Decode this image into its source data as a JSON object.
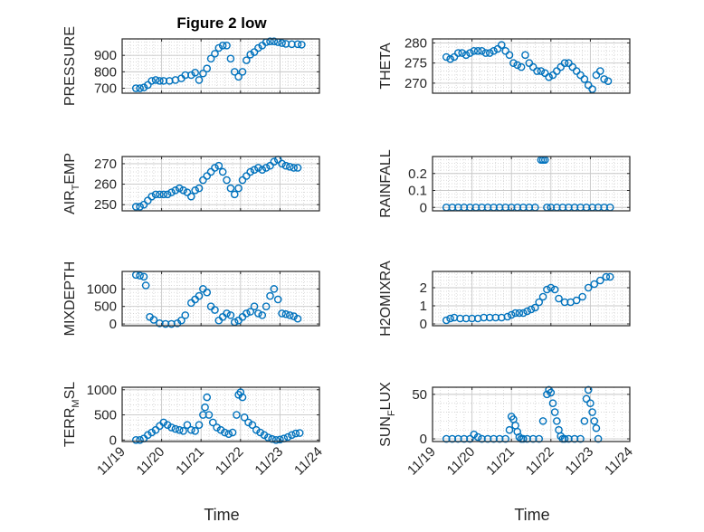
{
  "figure_title": "Figure 2 low",
  "xlabel": "Time",
  "colors": {
    "marker": "#0072BD",
    "axis": "#262626",
    "grid": "#d0d0d0",
    "background": "#ffffff"
  },
  "x_ticks": [
    "11/19",
    "11/20",
    "11/21",
    "11/22",
    "11/23",
    "11/24"
  ],
  "chart_data": [
    {
      "type": "scatter",
      "ylabel": "PRESSURE",
      "xlim": [
        "11/19",
        "11/24"
      ],
      "ylim": [
        670,
        1000
      ],
      "yticks": [
        700,
        800,
        900
      ],
      "yticklabels": [
        "700",
        "800",
        "900"
      ],
      "grid": true,
      "series": [
        {
          "x": [
            19.35,
            19.45,
            19.55,
            19.65,
            19.75,
            19.85,
            19.95,
            20.05,
            20.2,
            20.35,
            20.5,
            20.6,
            20.75,
            20.85,
            20.95,
            21.05,
            21.15,
            21.25,
            21.35,
            21.45,
            21.55,
            21.65,
            21.75,
            21.85,
            21.95,
            22.05,
            22.15,
            22.25,
            22.35,
            22.45,
            22.55,
            22.65,
            22.75,
            22.85,
            22.95,
            23.05,
            23.15,
            23.3,
            23.45,
            23.55
          ],
          "y": [
            700,
            700,
            705,
            720,
            745,
            750,
            745,
            745,
            745,
            750,
            760,
            780,
            780,
            795,
            750,
            790,
            820,
            880,
            910,
            945,
            960,
            960,
            880,
            800,
            770,
            800,
            870,
            905,
            920,
            945,
            960,
            980,
            985,
            985,
            980,
            975,
            970,
            968,
            968,
            965
          ]
        }
      ]
    },
    {
      "type": "scatter",
      "ylabel": "THETA",
      "xlim": [
        "11/19",
        "11/24"
      ],
      "ylim": [
        267.5,
        281
      ],
      "yticks": [
        270,
        275,
        280
      ],
      "yticklabels": [
        "270",
        "275",
        "280"
      ],
      "grid": true,
      "series": [
        {
          "x": [
            19.35,
            19.45,
            19.55,
            19.65,
            19.75,
            19.85,
            19.95,
            20.05,
            20.15,
            20.25,
            20.35,
            20.45,
            20.55,
            20.65,
            20.75,
            20.85,
            20.95,
            21.05,
            21.15,
            21.25,
            21.35,
            21.45,
            21.55,
            21.65,
            21.75,
            21.85,
            21.95,
            22.05,
            22.15,
            22.25,
            22.35,
            22.45,
            22.55,
            22.65,
            22.75,
            22.85,
            22.95,
            23.05,
            23.15,
            23.25,
            23.35,
            23.45
          ],
          "y": [
            276.5,
            276,
            276.5,
            277.5,
            277.5,
            277,
            277.5,
            278,
            278,
            278,
            277.5,
            277.5,
            278,
            278.5,
            279.5,
            278,
            277,
            275,
            274.5,
            274,
            277,
            275,
            274,
            273,
            273,
            272.5,
            271.5,
            272,
            273,
            274,
            275,
            275,
            274,
            273,
            272,
            271,
            269.5,
            268.5,
            272,
            273,
            271,
            270.5
          ]
        }
      ]
    },
    {
      "type": "scatter",
      "ylabel": "AIR_TEMP",
      "xlim": [
        "11/19",
        "11/24"
      ],
      "ylim": [
        247,
        273.5
      ],
      "yticks": [
        250,
        260,
        270
      ],
      "yticklabels": [
        "250",
        "260",
        "270"
      ],
      "grid": true,
      "series": [
        {
          "x": [
            19.35,
            19.45,
            19.55,
            19.65,
            19.75,
            19.85,
            19.95,
            20.05,
            20.15,
            20.25,
            20.35,
            20.45,
            20.55,
            20.65,
            20.75,
            20.85,
            20.95,
            21.05,
            21.15,
            21.25,
            21.35,
            21.45,
            21.55,
            21.65,
            21.75,
            21.85,
            21.95,
            22.05,
            22.15,
            22.25,
            22.35,
            22.45,
            22.55,
            22.65,
            22.75,
            22.85,
            22.95,
            23.05,
            23.15,
            23.25,
            23.35,
            23.45
          ],
          "y": [
            249,
            249,
            250,
            252,
            254,
            255,
            255,
            255,
            255,
            256,
            257,
            258,
            257,
            256,
            254,
            257,
            258,
            262,
            264,
            266,
            268,
            269,
            266,
            262,
            258,
            255,
            258,
            262,
            264,
            266,
            267,
            268,
            267,
            268,
            269,
            271,
            272,
            270,
            269,
            268.5,
            268,
            268
          ]
        }
      ]
    },
    {
      "type": "scatter",
      "ylabel": "RAINFALL",
      "xlim": [
        "11/19",
        "11/24"
      ],
      "ylim": [
        -0.02,
        0.3
      ],
      "yticks": [
        0,
        0.1,
        0.2
      ],
      "yticklabels": [
        "0",
        "0.1",
        "0.2"
      ],
      "grid": true,
      "series": [
        {
          "x": [
            19.35,
            19.5,
            19.65,
            19.8,
            19.95,
            20.1,
            20.25,
            20.4,
            20.55,
            20.7,
            20.85,
            21.0,
            21.15,
            21.3,
            21.45,
            21.6,
            21.75,
            21.8,
            21.85,
            21.9,
            22.0,
            22.15,
            22.3,
            22.45,
            22.6,
            22.75,
            22.9,
            23.05,
            23.2,
            23.35,
            23.5
          ],
          "y": [
            0,
            0,
            0,
            0,
            0,
            0,
            0,
            0,
            0,
            0,
            0,
            0,
            0,
            0,
            0,
            0,
            0.28,
            0.28,
            0.28,
            0,
            0,
            0,
            0,
            0,
            0,
            0,
            0,
            0,
            0,
            0,
            0
          ]
        }
      ]
    },
    {
      "type": "scatter",
      "ylabel": "MIXDEPTH",
      "xlim": [
        "11/19",
        "11/24"
      ],
      "ylim": [
        -50,
        1500
      ],
      "yticks": [
        0,
        500,
        1000
      ],
      "yticklabels": [
        "0",
        "500",
        "1000"
      ],
      "grid": true,
      "series": [
        {
          "x": [
            19.35,
            19.45,
            19.55,
            19.6,
            19.7,
            19.8,
            19.95,
            20.1,
            20.25,
            20.4,
            20.5,
            20.6,
            20.75,
            20.85,
            20.95,
            21.05,
            21.15,
            21.25,
            21.35,
            21.45,
            21.55,
            21.65,
            21.75,
            21.85,
            21.95,
            22.05,
            22.15,
            22.25,
            22.35,
            22.45,
            22.55,
            22.65,
            22.75,
            22.85,
            22.95,
            23.05,
            23.15,
            23.25,
            23.35,
            23.45
          ],
          "y": [
            1400,
            1380,
            1350,
            1100,
            200,
            120,
            20,
            0,
            0,
            20,
            100,
            250,
            600,
            700,
            800,
            1000,
            900,
            500,
            400,
            100,
            200,
            300,
            250,
            50,
            100,
            200,
            300,
            350,
            500,
            300,
            250,
            500,
            800,
            1000,
            700,
            300,
            280,
            250,
            220,
            150
          ]
        }
      ]
    },
    {
      "type": "scatter",
      "ylabel": "H2OMIXRA",
      "xlim": [
        "11/19",
        "11/24"
      ],
      "ylim": [
        -0.1,
        2.9
      ],
      "yticks": [
        0,
        1,
        2
      ],
      "yticklabels": [
        "0",
        "1",
        "2"
      ],
      "grid": true,
      "series": [
        {
          "x": [
            19.35,
            19.45,
            19.55,
            19.7,
            19.85,
            20.0,
            20.15,
            20.3,
            20.45,
            20.6,
            20.75,
            20.9,
            21.0,
            21.1,
            21.2,
            21.3,
            21.4,
            21.5,
            21.6,
            21.7,
            21.8,
            21.9,
            22.0,
            22.1,
            22.2,
            22.35,
            22.5,
            22.65,
            22.8,
            22.95,
            23.1,
            23.25,
            23.4,
            23.5
          ],
          "y": [
            0.2,
            0.3,
            0.35,
            0.3,
            0.3,
            0.3,
            0.3,
            0.35,
            0.35,
            0.35,
            0.35,
            0.4,
            0.5,
            0.6,
            0.6,
            0.6,
            0.7,
            0.8,
            0.9,
            1.2,
            1.5,
            1.9,
            2.0,
            1.9,
            1.4,
            1.2,
            1.2,
            1.3,
            1.5,
            2.0,
            2.2,
            2.4,
            2.6,
            2.6
          ]
        }
      ]
    },
    {
      "type": "scatter",
      "ylabel": "TERR_MSL",
      "xlim": [
        "11/19",
        "11/24"
      ],
      "ylim": [
        -30,
        1050
      ],
      "yticks": [
        0,
        500,
        1000
      ],
      "yticklabels": [
        "0",
        "500",
        "1000"
      ],
      "grid": true,
      "series": [
        {
          "x": [
            19.35,
            19.45,
            19.55,
            19.65,
            19.75,
            19.85,
            19.95,
            20.05,
            20.15,
            20.25,
            20.35,
            20.45,
            20.55,
            20.65,
            20.75,
            20.85,
            20.95,
            21.05,
            21.1,
            21.15,
            21.2,
            21.3,
            21.4,
            21.5,
            21.6,
            21.7,
            21.8,
            21.9,
            21.95,
            22.0,
            22.05,
            22.1,
            22.2,
            22.3,
            22.4,
            22.5,
            22.6,
            22.7,
            22.8,
            22.9,
            23.0,
            23.1,
            23.2,
            23.3,
            23.4,
            23.5
          ],
          "y": [
            0,
            0,
            30,
            100,
            150,
            200,
            280,
            350,
            300,
            250,
            220,
            200,
            180,
            300,
            200,
            180,
            300,
            500,
            650,
            850,
            500,
            350,
            250,
            200,
            150,
            120,
            150,
            500,
            900,
            950,
            850,
            450,
            350,
            300,
            200,
            150,
            100,
            50,
            20,
            0,
            10,
            30,
            60,
            100,
            130,
            140
          ]
        }
      ]
    },
    {
      "type": "scatter",
      "ylabel": "SUN_FLUX",
      "xlim": [
        "11/19",
        "11/24"
      ],
      "ylim": [
        -3,
        58
      ],
      "yticks": [
        0,
        50
      ],
      "yticklabels": [
        "0",
        "50"
      ],
      "grid": true,
      "series": [
        {
          "x": [
            19.35,
            19.5,
            19.65,
            19.8,
            19.95,
            20.05,
            20.15,
            20.25,
            20.4,
            20.55,
            20.7,
            20.85,
            20.95,
            21.0,
            21.05,
            21.1,
            21.15,
            21.2,
            21.25,
            21.3,
            21.4,
            21.55,
            21.7,
            21.8,
            21.9,
            21.95,
            22.0,
            22.05,
            22.1,
            22.15,
            22.2,
            22.25,
            22.3,
            22.35,
            22.45,
            22.6,
            22.75,
            22.85,
            22.9,
            22.95,
            23.0,
            23.05,
            23.1,
            23.15,
            23.2
          ],
          "y": [
            0,
            0,
            0,
            0,
            0,
            5,
            2,
            0,
            0,
            0,
            0,
            0,
            10,
            25,
            22,
            15,
            8,
            2,
            0,
            0,
            0,
            0,
            0,
            20,
            50,
            55,
            52,
            40,
            30,
            20,
            10,
            3,
            0,
            0,
            0,
            0,
            0,
            20,
            45,
            55,
            40,
            30,
            20,
            12,
            0
          ]
        }
      ]
    }
  ]
}
